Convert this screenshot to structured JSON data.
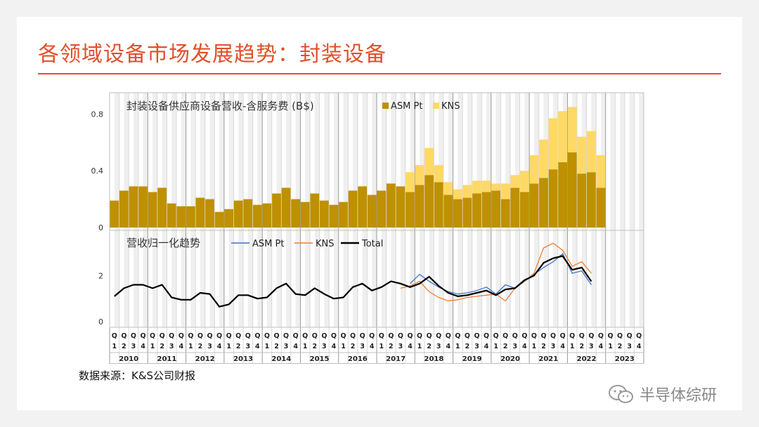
{
  "slide": {
    "title": "各领域设备市场发展趋势：封装设备",
    "source": "数据来源：K&S公司财报",
    "brand": "半导体综研",
    "accent_color": "#e0502a"
  },
  "chart_data": [
    {
      "type": "bar",
      "stacked": true,
      "title": "封装设备供应商设备营收-含服务费 (B$)",
      "quarter_labels": [
        "Q1",
        "Q2",
        "Q3",
        "Q4"
      ],
      "years": [
        "2010",
        "2011",
        "2012",
        "2013",
        "2014",
        "2015",
        "2016",
        "2017",
        "2018",
        "2019",
        "2020",
        "2021",
        "2022",
        "2023"
      ],
      "ylim": [
        0,
        0.95
      ],
      "yticks": [
        0,
        0.4,
        0.8
      ],
      "ytick_labels": [
        "0",
        "0.4",
        "0.8"
      ],
      "series": [
        {
          "name": "ASM Pt",
          "color": "#bf9000",
          "values": [
            0.19,
            0.26,
            0.29,
            0.29,
            0.25,
            0.28,
            0.17,
            0.15,
            0.15,
            0.21,
            0.2,
            0.11,
            0.13,
            0.19,
            0.2,
            0.16,
            0.17,
            0.24,
            0.28,
            0.2,
            0.18,
            0.24,
            0.19,
            0.16,
            0.18,
            0.26,
            0.29,
            0.23,
            0.26,
            0.31,
            0.29,
            0.25,
            0.3,
            0.37,
            0.32,
            0.23,
            0.2,
            0.21,
            0.24,
            0.25,
            0.26,
            0.2,
            0.28,
            0.25,
            0.31,
            0.35,
            0.41,
            0.46,
            0.53,
            0.38,
            0.39,
            0.28,
            null,
            null,
            null,
            null
          ]
        },
        {
          "name": "KNS",
          "color": "#ffd966",
          "values": [
            null,
            null,
            null,
            null,
            null,
            null,
            null,
            null,
            null,
            null,
            null,
            null,
            null,
            null,
            null,
            null,
            null,
            null,
            null,
            null,
            null,
            null,
            null,
            null,
            null,
            null,
            null,
            null,
            null,
            null,
            null,
            0.14,
            0.14,
            0.19,
            0.12,
            0.09,
            0.07,
            0.09,
            0.09,
            0.08,
            0.05,
            0.11,
            0.09,
            0.15,
            0.2,
            0.27,
            0.36,
            0.36,
            0.32,
            0.26,
            0.29,
            0.23,
            null,
            null,
            null,
            null
          ]
        }
      ]
    },
    {
      "type": "line",
      "title": "营收归一化趋势",
      "yticks": [
        0,
        2
      ],
      "ytick_labels": [
        "0",
        "2"
      ],
      "ylim": [
        0,
        3.9
      ],
      "series": [
        {
          "name": "ASM Pt",
          "color": "#4472c4",
          "values": [
            null,
            null,
            null,
            null,
            null,
            null,
            null,
            null,
            null,
            null,
            null,
            null,
            null,
            null,
            null,
            null,
            null,
            null,
            null,
            null,
            null,
            null,
            null,
            null,
            null,
            null,
            null,
            null,
            null,
            null,
            null,
            1.65,
            2.05,
            1.75,
            1.5,
            1.3,
            1.2,
            1.25,
            1.35,
            1.5,
            1.2,
            1.6,
            1.45,
            1.75,
            2.05,
            2.35,
            2.6,
            2.95,
            2.1,
            2.2,
            1.6,
            null,
            null,
            null,
            null,
            null
          ]
        },
        {
          "name": "KNS",
          "color": "#ed7d31",
          "values": [
            null,
            null,
            null,
            null,
            null,
            null,
            null,
            null,
            null,
            null,
            null,
            null,
            null,
            null,
            null,
            null,
            null,
            null,
            null,
            null,
            null,
            null,
            null,
            null,
            null,
            null,
            null,
            null,
            null,
            null,
            1.45,
            1.55,
            1.75,
            1.3,
            1.05,
            0.9,
            0.95,
            1.05,
            1.1,
            1.15,
            1.2,
            0.9,
            1.45,
            1.75,
            2.1,
            3.2,
            3.4,
            3.1,
            2.4,
            2.6,
            2.1,
            null,
            null,
            null,
            null,
            null
          ]
        },
        {
          "name": "Total",
          "color": "#000000",
          "values": [
            1.1,
            1.45,
            1.6,
            1.6,
            1.45,
            1.6,
            1.05,
            0.95,
            0.95,
            1.25,
            1.2,
            0.65,
            0.75,
            1.15,
            1.15,
            1.0,
            1.05,
            1.45,
            1.65,
            1.2,
            1.15,
            1.45,
            1.2,
            1.0,
            1.05,
            1.5,
            1.65,
            1.35,
            1.5,
            1.75,
            1.65,
            1.5,
            1.65,
            1.95,
            1.55,
            1.25,
            1.1,
            1.15,
            1.25,
            1.35,
            1.15,
            1.4,
            1.45,
            1.8,
            2.0,
            2.55,
            2.75,
            2.85,
            2.25,
            2.35,
            1.75,
            null,
            null,
            null,
            null,
            null
          ]
        }
      ]
    }
  ]
}
